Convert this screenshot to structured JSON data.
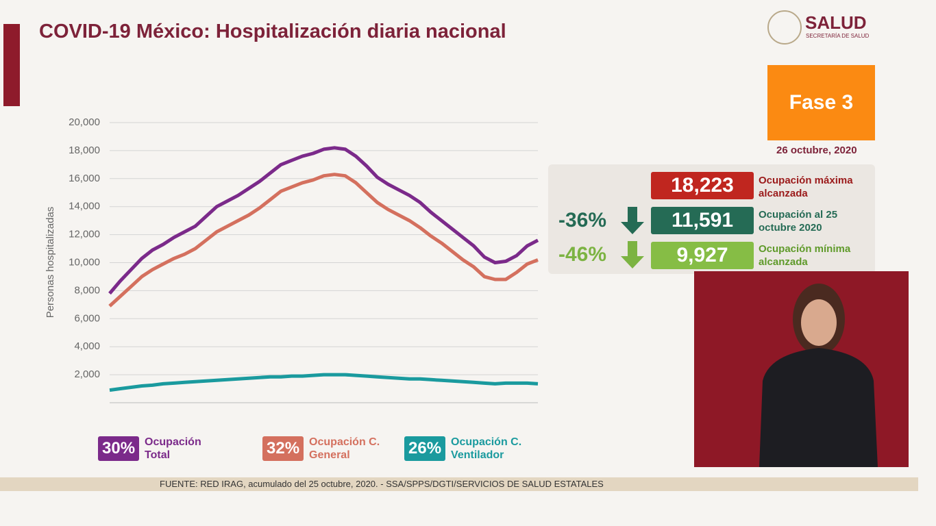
{
  "header": {
    "title": "COVID-19 México: Hospitalización diaria nacional",
    "logo": "SALUD",
    "logo_sub": "SECRETARÍA DE SALUD",
    "phase": "Fase 3",
    "date": "26 octubre, 2020"
  },
  "panel": {
    "max_value": "18,223",
    "max_label": "Ocupación máxima alcanzada",
    "current_change": "-36%",
    "current_value": "11,591",
    "current_label": "Ocupación al 25 octubre 2020",
    "min_change": "-46%",
    "min_value": "9,927",
    "min_label": "Ocupación mínima alcanzada"
  },
  "footer": "FUENTE: RED IRAG, acumulado del 25 octubre, 2020. -  SSA/SPPS/DGTI/SERVICIOS DE SALUD ESTATALES",
  "chart_data": {
    "type": "line",
    "y_label": "Personas hospitalizadas",
    "grid": true,
    "ylim": [
      0,
      20000
    ],
    "yticks": [
      {
        "value": 2000,
        "label": "2,000"
      },
      {
        "value": 4000,
        "label": "4,000"
      },
      {
        "value": 6000,
        "label": "6,000"
      },
      {
        "value": 8000,
        "label": "8,000"
      },
      {
        "value": 10000,
        "label": "10,000"
      },
      {
        "value": 12000,
        "label": "12,000"
      },
      {
        "value": 14000,
        "label": "14,000"
      },
      {
        "value": 16000,
        "label": "16,000"
      },
      {
        "value": 18000,
        "label": "18,000"
      },
      {
        "value": 20000,
        "label": "20,000"
      }
    ],
    "series": [
      {
        "name": "Ocupación Total",
        "percent": "30%",
        "color": "#7b2a8a",
        "values": [
          7800,
          8700,
          9500,
          10300,
          10900,
          11300,
          11800,
          12200,
          12600,
          13300,
          14000,
          14400,
          14800,
          15300,
          15800,
          16400,
          17000,
          17300,
          17600,
          17800,
          18100,
          18200,
          18100,
          17600,
          16900,
          16100,
          15600,
          15200,
          14800,
          14300,
          13600,
          13000,
          12400,
          11800,
          11200,
          10400,
          10000,
          10100,
          10500,
          11200,
          11600
        ]
      },
      {
        "name": "Ocupación C. General",
        "percent": "32%",
        "color": "#d4705e",
        "values": [
          6900,
          7600,
          8300,
          9000,
          9500,
          9900,
          10300,
          10600,
          11000,
          11600,
          12200,
          12600,
          13000,
          13400,
          13900,
          14500,
          15100,
          15400,
          15700,
          15900,
          16200,
          16300,
          16200,
          15700,
          15000,
          14300,
          13800,
          13400,
          13000,
          12500,
          11900,
          11400,
          10800,
          10200,
          9700,
          9000,
          8800,
          8800,
          9300,
          9900,
          10200
        ]
      },
      {
        "name": "Ocupación C. Ventilador",
        "percent": "26%",
        "color": "#1a9a9e",
        "values": [
          900,
          1000,
          1100,
          1200,
          1250,
          1350,
          1400,
          1450,
          1500,
          1550,
          1600,
          1650,
          1700,
          1750,
          1800,
          1850,
          1850,
          1900,
          1900,
          1950,
          2000,
          2000,
          2000,
          1950,
          1900,
          1850,
          1800,
          1750,
          1700,
          1700,
          1650,
          1600,
          1550,
          1500,
          1450,
          1400,
          1350,
          1400,
          1400,
          1400,
          1350
        ]
      }
    ]
  }
}
